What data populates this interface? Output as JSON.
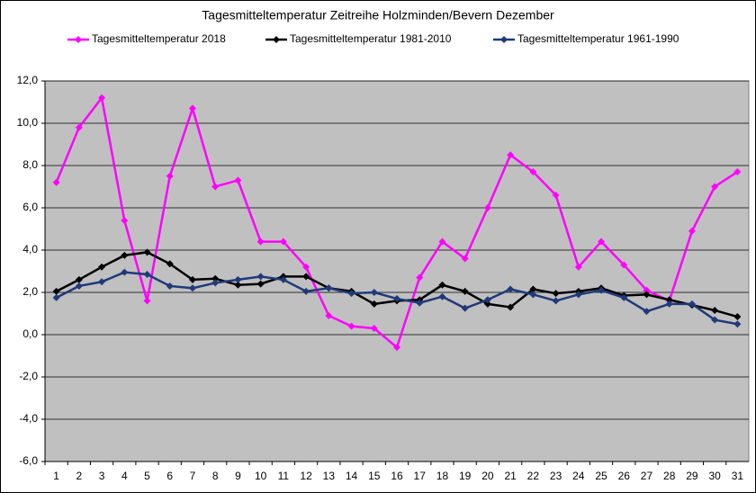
{
  "chart_data": {
    "type": "line",
    "title": "Tagesmitteltemperatur Zeitreihe Holzminden/Bevern  Dezember",
    "categories": [
      "1",
      "2",
      "3",
      "4",
      "5",
      "6",
      "7",
      "8",
      "9",
      "10",
      "11",
      "12",
      "13",
      "14",
      "15",
      "16",
      "17",
      "18",
      "19",
      "20",
      "21",
      "22",
      "23",
      "24",
      "25",
      "26",
      "27",
      "28",
      "29",
      "30",
      "31"
    ],
    "series": [
      {
        "name": "Tagesmitteltemperatur 2018",
        "color": "#ff00ff",
        "values": [
          7.2,
          9.8,
          11.2,
          5.4,
          1.6,
          7.5,
          10.7,
          7.0,
          7.3,
          4.4,
          4.4,
          3.2,
          0.9,
          0.4,
          0.3,
          -0.6,
          2.7,
          4.4,
          3.6,
          6.0,
          8.5,
          7.7,
          6.6,
          3.2,
          4.4,
          3.3,
          2.1,
          1.6,
          4.9,
          7.0,
          7.7
        ]
      },
      {
        "name": "Tagesmitteltemperatur 1981-2010",
        "color": "#000000",
        "values": [
          2.05,
          2.6,
          3.2,
          3.75,
          3.9,
          3.35,
          2.6,
          2.65,
          2.35,
          2.4,
          2.75,
          2.75,
          2.2,
          2.05,
          1.45,
          1.6,
          1.65,
          2.35,
          2.05,
          1.45,
          1.3,
          2.15,
          1.95,
          2.05,
          2.2,
          1.85,
          1.9,
          1.65,
          1.4,
          1.15,
          0.85
        ]
      },
      {
        "name": "Tagesmitteltemperatur 1961-1990",
        "color": "#1f3a7a",
        "values": [
          1.75,
          2.3,
          2.5,
          2.95,
          2.85,
          2.3,
          2.2,
          2.45,
          2.6,
          2.75,
          2.6,
          2.05,
          2.2,
          1.95,
          2.0,
          1.7,
          1.5,
          1.8,
          1.25,
          1.65,
          2.15,
          1.9,
          1.6,
          1.9,
          2.1,
          1.75,
          1.1,
          1.45,
          1.45,
          0.7,
          0.5
        ]
      }
    ],
    "ylim": [
      -6,
      12
    ],
    "yticks": [
      {
        "value": -6,
        "label": "-6,0"
      },
      {
        "value": -4,
        "label": "-4,0"
      },
      {
        "value": -2,
        "label": "-2,0"
      },
      {
        "value": 0,
        "label": "0,0"
      },
      {
        "value": 2,
        "label": "2,0"
      },
      {
        "value": 4,
        "label": "4,0"
      },
      {
        "value": 6,
        "label": "6,0"
      },
      {
        "value": 8,
        "label": "8,0"
      },
      {
        "value": 10,
        "label": "10,0"
      },
      {
        "value": 12,
        "label": "12,0"
      }
    ],
    "grid": true,
    "legend": "top",
    "plot_background": "#c0c0c0"
  }
}
